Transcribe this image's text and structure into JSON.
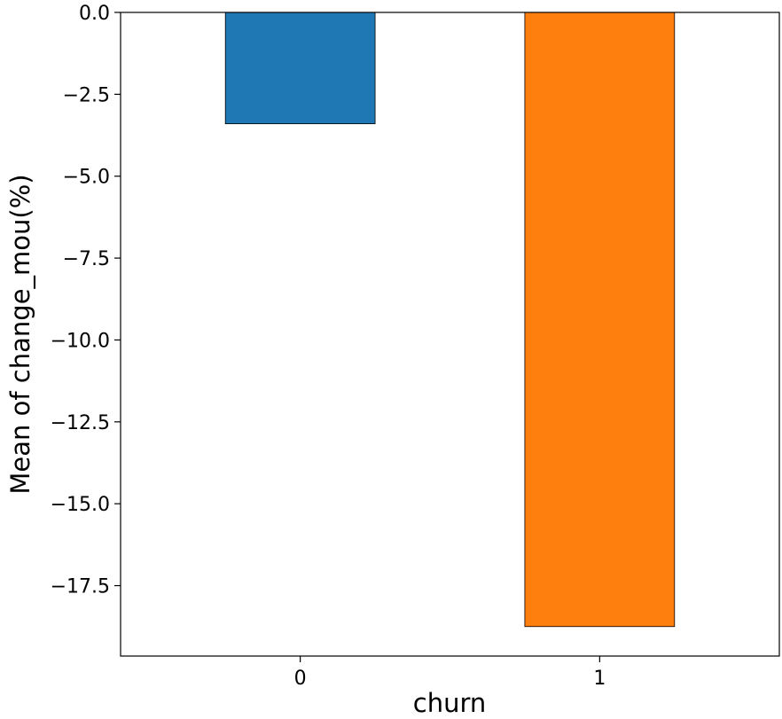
{
  "chart_data": {
    "type": "bar",
    "categories": [
      "0",
      "1"
    ],
    "values": [
      -3.4,
      -18.75
    ],
    "colors": [
      "#1f77b4",
      "#ff7f0e"
    ],
    "xlabel": "churn",
    "ylabel": "Mean of change_mou(%)",
    "ylim": [
      -19.65,
      0
    ],
    "yticks": [
      0,
      -2.5,
      -5,
      -7.5,
      -10,
      -12.5,
      -15,
      -17.5
    ],
    "ytick_labels": [
      "0.0",
      "−2.5",
      "−5.0",
      "−7.5",
      "−10.0",
      "−12.5",
      "−15.0",
      "−17.5"
    ],
    "grid": false,
    "legend": "none"
  }
}
